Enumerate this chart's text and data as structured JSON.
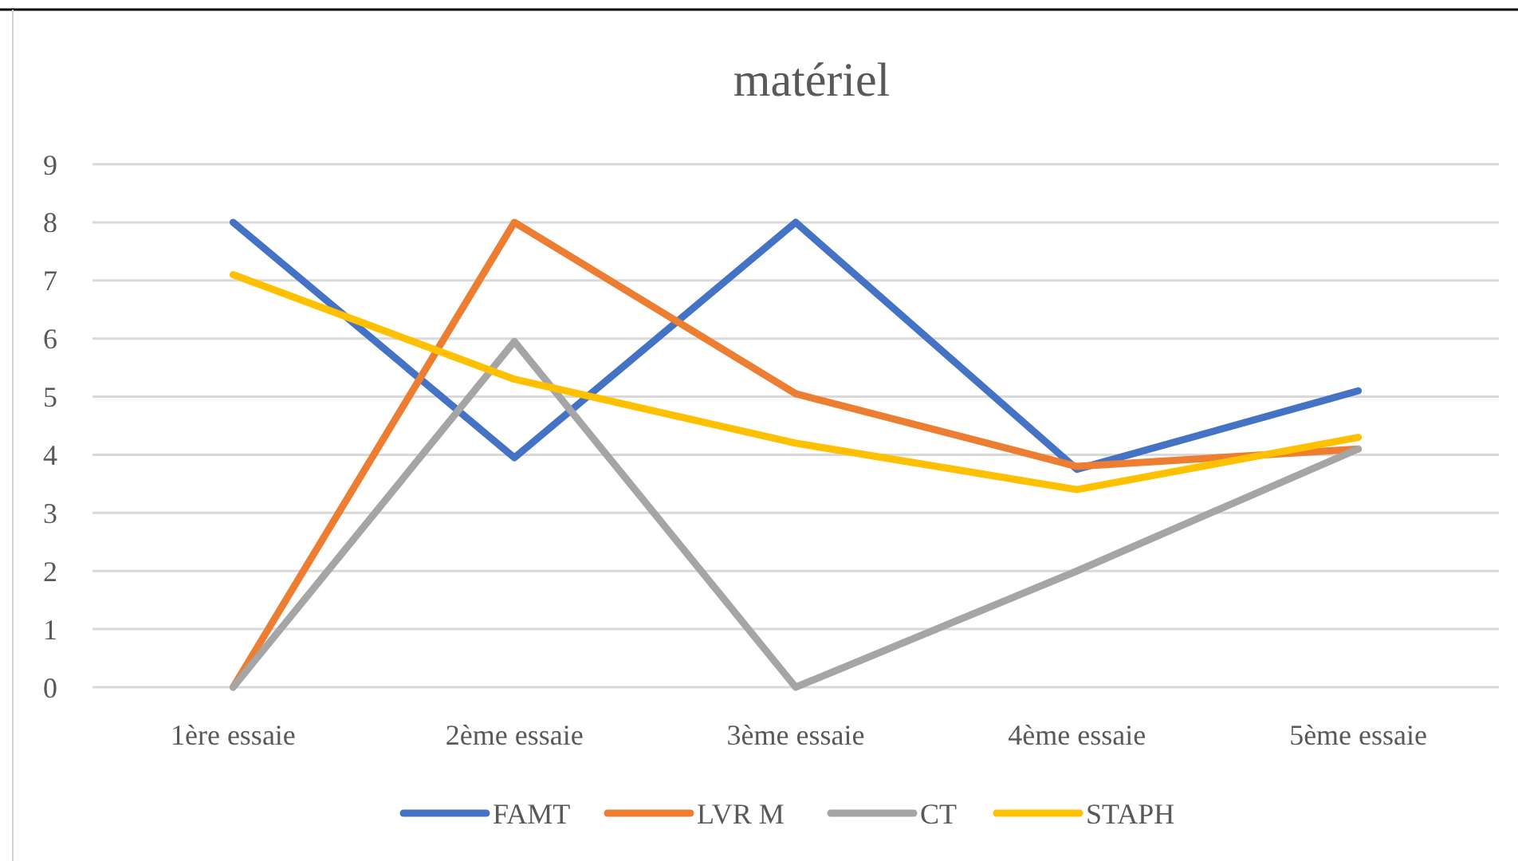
{
  "chart_data": {
    "type": "line",
    "title": "matériel",
    "categories": [
      "1ère essaie",
      "2ème essaie",
      "3ème essaie",
      "4ème essaie",
      "5ème essaie"
    ],
    "series": [
      {
        "name": "FAMT",
        "color": "#4472c4",
        "values": [
          8,
          3.95,
          8,
          3.75,
          5.1
        ]
      },
      {
        "name": "LVR M",
        "color": "#ed7d31",
        "values": [
          0,
          8,
          5.05,
          3.8,
          4.1
        ]
      },
      {
        "name": "CT",
        "color": "#a5a5a5",
        "values": [
          0,
          5.95,
          0,
          2,
          4.1
        ]
      },
      {
        "name": "STAPH",
        "color": "#ffc000",
        "values": [
          7.1,
          5.3,
          4.2,
          3.4,
          4.3
        ]
      }
    ],
    "ylim": [
      0,
      9
    ],
    "yticks": [
      0,
      1,
      2,
      3,
      4,
      5,
      6,
      7,
      8,
      9
    ],
    "grid": "y",
    "legend": "bottom",
    "marker": "none",
    "line_style": "solid"
  }
}
